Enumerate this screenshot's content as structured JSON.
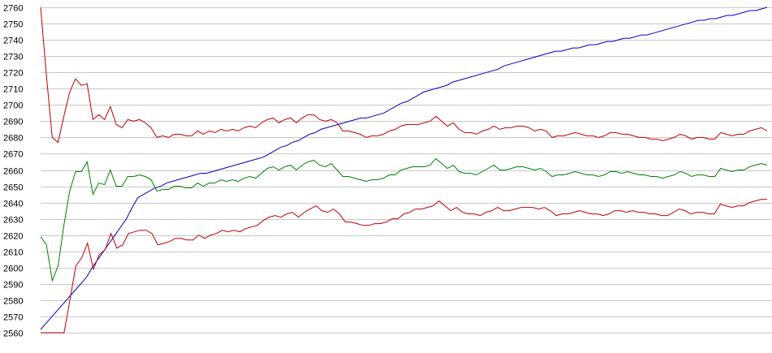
{
  "chart_data": {
    "type": "line",
    "title": "",
    "xlabel": "",
    "ylabel": "",
    "ylim": [
      2560,
      2760
    ],
    "y_ticks": [
      2560,
      2570,
      2580,
      2590,
      2600,
      2610,
      2620,
      2630,
      2640,
      2650,
      2660,
      2670,
      2680,
      2690,
      2700,
      2710,
      2720,
      2730,
      2740,
      2750,
      2760
    ],
    "grid": "horizontal",
    "legend": "none",
    "series": [
      {
        "color": "#0000c0",
        "values": [
          2562,
          2566,
          2570,
          2574,
          2578,
          2582,
          2586,
          2590,
          2594,
          2600,
          2605,
          2610,
          2615,
          2620,
          2625,
          2630,
          2637,
          2643,
          2645,
          2647,
          2649,
          2650,
          2652,
          2653,
          2654,
          2655,
          2656,
          2657,
          2658,
          2658,
          2659,
          2660,
          2661,
          2662,
          2663,
          2664,
          2665,
          2666,
          2667,
          2668,
          2670,
          2672,
          2674,
          2675,
          2677,
          2678,
          2680,
          2682,
          2683,
          2685,
          2686,
          2687,
          2688,
          2689,
          2690,
          2691,
          2692,
          2692,
          2693,
          2694,
          2695,
          2697,
          2699,
          2701,
          2702,
          2704,
          2706,
          2708,
          2709,
          2710,
          2711,
          2712,
          2714,
          2715,
          2716,
          2717,
          2718,
          2719,
          2720,
          2721,
          2722,
          2724,
          2725,
          2726,
          2727,
          2728,
          2729,
          2730,
          2731,
          2732,
          2733,
          2733,
          2734,
          2735,
          2735,
          2736,
          2737,
          2737,
          2738,
          2739,
          2739,
          2740,
          2741,
          2741,
          2742,
          2743,
          2743,
          2744,
          2745,
          2746,
          2747,
          2748,
          2749,
          2750,
          2751,
          2752,
          2752,
          2753,
          2753,
          2754,
          2755,
          2755,
          2756,
          2757,
          2758,
          2758,
          2759,
          2760
        ]
      },
      {
        "color": "#c00000",
        "values": [
          2760,
          2718,
          2680,
          2677,
          2693,
          2708,
          2716,
          2712,
          2713,
          2691,
          2694,
          2691,
          2699,
          2688,
          2686,
          2691,
          2690,
          2691,
          2689,
          2686,
          2680,
          2681,
          2680,
          2682,
          2682,
          2681,
          2681,
          2684,
          2682,
          2684,
          2683,
          2685,
          2684,
          2685,
          2684,
          2686,
          2687,
          2686,
          2689,
          2691,
          2692,
          2689,
          2691,
          2692,
          2689,
          2692,
          2694,
          2694,
          2691,
          2690,
          2691,
          2689,
          2684,
          2684,
          2683,
          2682,
          2680,
          2681,
          2681,
          2682,
          2684,
          2685,
          2687,
          2688,
          2688,
          2688,
          2689,
          2690,
          2693,
          2690,
          2687,
          2689,
          2685,
          2683,
          2683,
          2682,
          2684,
          2685,
          2687,
          2685,
          2686,
          2686,
          2687,
          2687,
          2686,
          2684,
          2685,
          2684,
          2680,
          2681,
          2681,
          2682,
          2683,
          2682,
          2681,
          2681,
          2680,
          2681,
          2683,
          2683,
          2682,
          2682,
          2681,
          2680,
          2680,
          2679,
          2679,
          2678,
          2679,
          2680,
          2682,
          2681,
          2679,
          2680,
          2680,
          2679,
          2679,
          2683,
          2682,
          2681,
          2682,
          2682,
          2684,
          2685,
          2686,
          2684
        ]
      },
      {
        "color": "#008000",
        "values": [
          2619,
          2614,
          2592,
          2601,
          2626,
          2647,
          2659,
          2659,
          2665,
          2645,
          2652,
          2651,
          2660,
          2650,
          2650,
          2656,
          2656,
          2657,
          2656,
          2654,
          2647,
          2648,
          2648,
          2650,
          2650,
          2649,
          2649,
          2652,
          2650,
          2652,
          2652,
          2654,
          2653,
          2654,
          2653,
          2655,
          2656,
          2655,
          2658,
          2661,
          2662,
          2660,
          2662,
          2663,
          2660,
          2663,
          2665,
          2666,
          2663,
          2662,
          2664,
          2660,
          2656,
          2656,
          2655,
          2654,
          2653,
          2654,
          2654,
          2655,
          2657,
          2657,
          2660,
          2661,
          2662,
          2662,
          2662,
          2663,
          2667,
          2664,
          2661,
          2663,
          2659,
          2658,
          2658,
          2657,
          2659,
          2661,
          2663,
          2660,
          2660,
          2661,
          2662,
          2662,
          2661,
          2660,
          2661,
          2659,
          2656,
          2657,
          2657,
          2658,
          2659,
          2658,
          2657,
          2657,
          2656,
          2657,
          2659,
          2659,
          2658,
          2659,
          2658,
          2657,
          2657,
          2656,
          2656,
          2655,
          2656,
          2657,
          2659,
          2658,
          2656,
          2657,
          2657,
          2656,
          2656,
          2661,
          2660,
          2659,
          2660,
          2660,
          2662,
          2663,
          2664,
          2663
        ]
      },
      {
        "color": "#c00000",
        "values": [
          2560,
          2560,
          2560,
          2560,
          2560,
          2580,
          2601,
          2606,
          2615,
          2599,
          2608,
          2611,
          2621,
          2612,
          2614,
          2621,
          2622,
          2623,
          2623,
          2621,
          2614,
          2615,
          2616,
          2618,
          2618,
          2617,
          2617,
          2620,
          2618,
          2620,
          2621,
          2623,
          2622,
          2623,
          2622,
          2624,
          2625,
          2626,
          2629,
          2631,
          2632,
          2631,
          2633,
          2634,
          2631,
          2634,
          2636,
          2638,
          2635,
          2634,
          2636,
          2633,
          2628,
          2628,
          2627,
          2626,
          2626,
          2627,
          2627,
          2628,
          2630,
          2630,
          2633,
          2634,
          2636,
          2636,
          2637,
          2638,
          2641,
          2638,
          2635,
          2637,
          2634,
          2633,
          2633,
          2632,
          2634,
          2635,
          2637,
          2635,
          2635,
          2636,
          2637,
          2637,
          2637,
          2636,
          2637,
          2635,
          2632,
          2633,
          2633,
          2634,
          2635,
          2634,
          2633,
          2633,
          2632,
          2633,
          2635,
          2635,
          2634,
          2635,
          2634,
          2634,
          2633,
          2633,
          2632,
          2632,
          2634,
          2636,
          2635,
          2633,
          2634,
          2634,
          2633,
          2633,
          2639,
          2638,
          2637,
          2638,
          2638,
          2640,
          2641,
          2642,
          2642
        ]
      }
    ]
  }
}
